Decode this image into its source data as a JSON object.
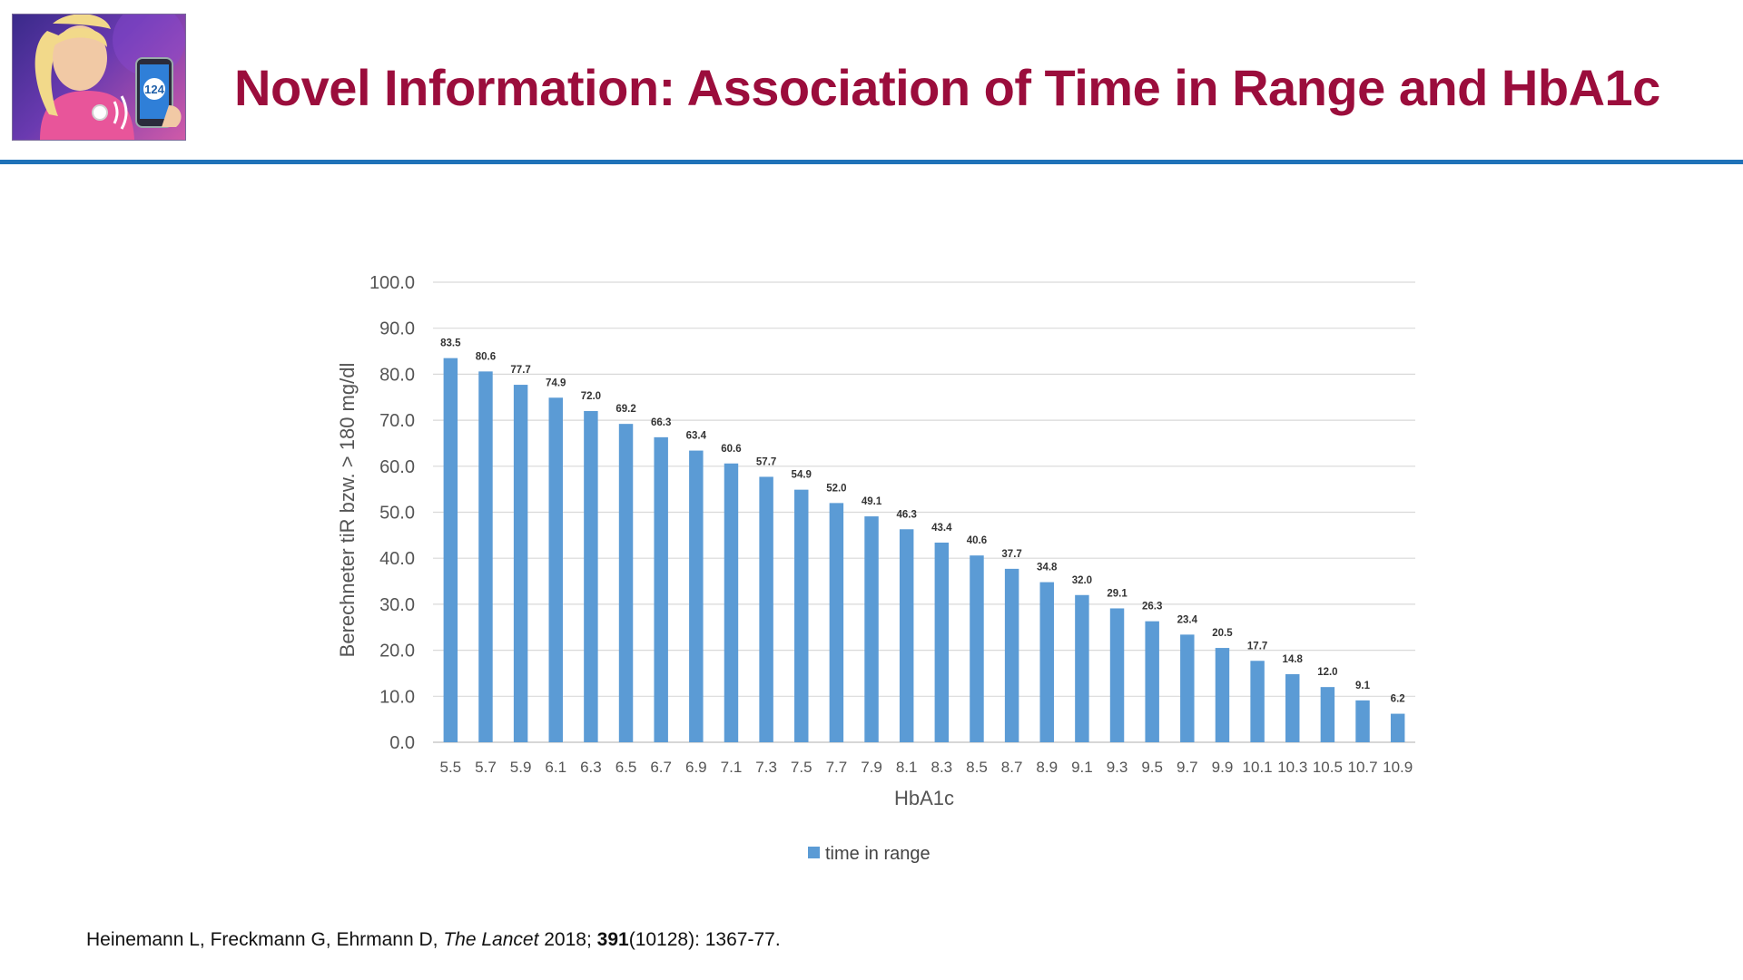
{
  "slide": {
    "title": "Novel Information: Association of Time in Range and HbA1c",
    "logo_phone_number": "124"
  },
  "citation": {
    "authors": "Heinemann L, Freckmann G, Ehrmann D, ",
    "journal": "The Lancet",
    "year_sep": " 2018; ",
    "volume": "391",
    "rest": "(10128): 1367-77."
  },
  "chart_data": {
    "type": "bar",
    "title": "",
    "xlabel": "HbA1c",
    "ylabel": "Berechneter tiR bzw. > 180 mg/dl",
    "ylim": [
      0,
      100
    ],
    "ytick_step": 10,
    "grid": true,
    "legend_position": "bottom",
    "bar_color": "#5b9bd5",
    "categories": [
      "5.5",
      "5.7",
      "5.9",
      "6.1",
      "6.3",
      "6.5",
      "6.7",
      "6.9",
      "7.1",
      "7.3",
      "7.5",
      "7.7",
      "7.9",
      "8.1",
      "8.3",
      "8.5",
      "8.7",
      "8.9",
      "9.1",
      "9.3",
      "9.5",
      "9.7",
      "9.9",
      "10.1",
      "10.3",
      "10.5",
      "10.7",
      "10.9"
    ],
    "series": [
      {
        "name": "time in range",
        "values": [
          83.5,
          80.6,
          77.7,
          74.9,
          72.0,
          69.2,
          66.3,
          63.4,
          60.6,
          57.7,
          54.9,
          52.0,
          49.1,
          46.3,
          43.4,
          40.6,
          37.7,
          34.8,
          32.0,
          29.1,
          26.3,
          23.4,
          20.5,
          17.7,
          14.8,
          12.0,
          9.1,
          6.2
        ]
      }
    ]
  }
}
